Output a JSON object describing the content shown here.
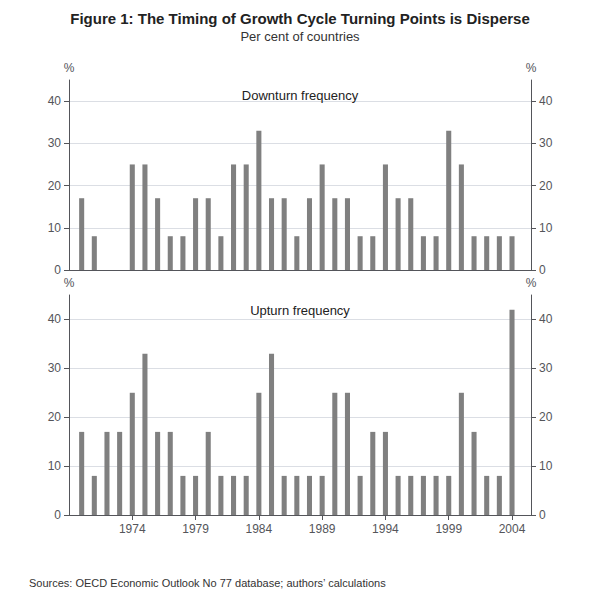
{
  "chart_data": [
    {
      "type": "bar",
      "title": "Figure 1: The Timing of Growth Cycle Turning Points is Disperse",
      "subtitle": "Per cent of countries",
      "annotations": [
        "Downturn frequency"
      ],
      "x": [
        1970,
        1971,
        1972,
        1973,
        1974,
        1975,
        1976,
        1977,
        1978,
        1979,
        1980,
        1981,
        1982,
        1983,
        1984,
        1985,
        1986,
        1987,
        1988,
        1989,
        1990,
        1991,
        1992,
        1993,
        1994,
        1995,
        1996,
        1997,
        1998,
        1999,
        2000,
        2001,
        2002,
        2003,
        2004
      ],
      "values": [
        17,
        8,
        0,
        0,
        25,
        25,
        17,
        8,
        8,
        17,
        17,
        8,
        25,
        25,
        33,
        17,
        17,
        8,
        17,
        25,
        17,
        17,
        8,
        8,
        25,
        17,
        17,
        8,
        8,
        33,
        25,
        8,
        8,
        8,
        8
      ],
      "color": "#808080",
      "xlim": [
        1969.0,
        2005.5
      ],
      "xticks": [
        1974,
        1979,
        1984,
        1989,
        1994,
        1999,
        2004
      ],
      "ylim": [
        0,
        45
      ],
      "yticks": [
        0,
        10,
        20,
        30,
        40
      ],
      "y2lim": [
        0,
        45
      ],
      "y2ticks": [
        0,
        10,
        20,
        30,
        40
      ],
      "ylabel": "%",
      "y2label": "%",
      "grid": true,
      "tick_labels": "y"
    },
    {
      "type": "bar",
      "annotations": [
        "Upturn frequency",
        "Sources: OECD Economic Outlook No 77 database; authors’ calculations"
      ],
      "x": [
        1970,
        1971,
        1972,
        1973,
        1974,
        1975,
        1976,
        1977,
        1978,
        1979,
        1980,
        1981,
        1982,
        1983,
        1984,
        1985,
        1986,
        1987,
        1988,
        1989,
        1990,
        1991,
        1992,
        1993,
        1994,
        1995,
        1996,
        1997,
        1998,
        1999,
        2000,
        2001,
        2002,
        2003,
        2004
      ],
      "values": [
        17,
        8,
        17,
        17,
        25,
        33,
        17,
        17,
        8,
        8,
        17,
        8,
        8,
        8,
        25,
        33,
        8,
        8,
        8,
        8,
        25,
        25,
        8,
        17,
        17,
        8,
        8,
        8,
        8,
        8,
        25,
        17,
        8,
        8,
        42
      ],
      "color": "#808080",
      "xlim": [
        1969.0,
        2005.5
      ],
      "xticks": [
        1974,
        1979,
        1984,
        1989,
        1994,
        1999,
        2004
      ],
      "ylim": [
        0,
        45
      ],
      "yticks": [
        0,
        10,
        20,
        30,
        40
      ],
      "y2lim": [
        0,
        45
      ],
      "y2ticks": [
        0,
        10,
        20,
        30,
        40
      ],
      "ylabel": "%",
      "y2label": "%",
      "grid": true
    }
  ]
}
